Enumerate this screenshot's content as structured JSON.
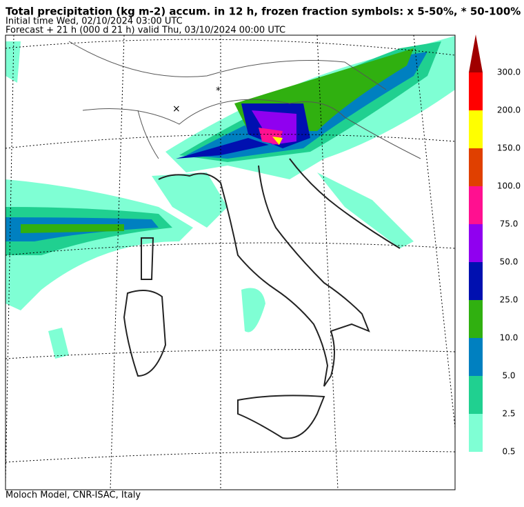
{
  "header": {
    "title": "Total precipitation (kg m-2) accum. in 12 h, frozen fraction symbols: x 5-50%, * 50-100%",
    "initial_time": "Initial time  Wed, 02/10/2024  03:00 UTC",
    "forecast": "Forecast  +  21 h  (000 d 21 h)  valid Thu, 03/10/2024  00:00 UTC"
  },
  "colorbar": {
    "labels": [
      "0.5",
      "2.5",
      "5.0",
      "10.0",
      "25.0",
      "50.0",
      "75.0",
      "100.0",
      "150.0",
      "200.0",
      "300.0"
    ],
    "colors": [
      "#7fffd4",
      "#20d090",
      "#0080c0",
      "#30b010",
      "#0010b0",
      "#9000f0",
      "#ff1090",
      "#e04000",
      "#ffff00",
      "#ff0000",
      "#a00000"
    ]
  },
  "footer": "Moloch Model, CNR-ISAC, Italy"
}
